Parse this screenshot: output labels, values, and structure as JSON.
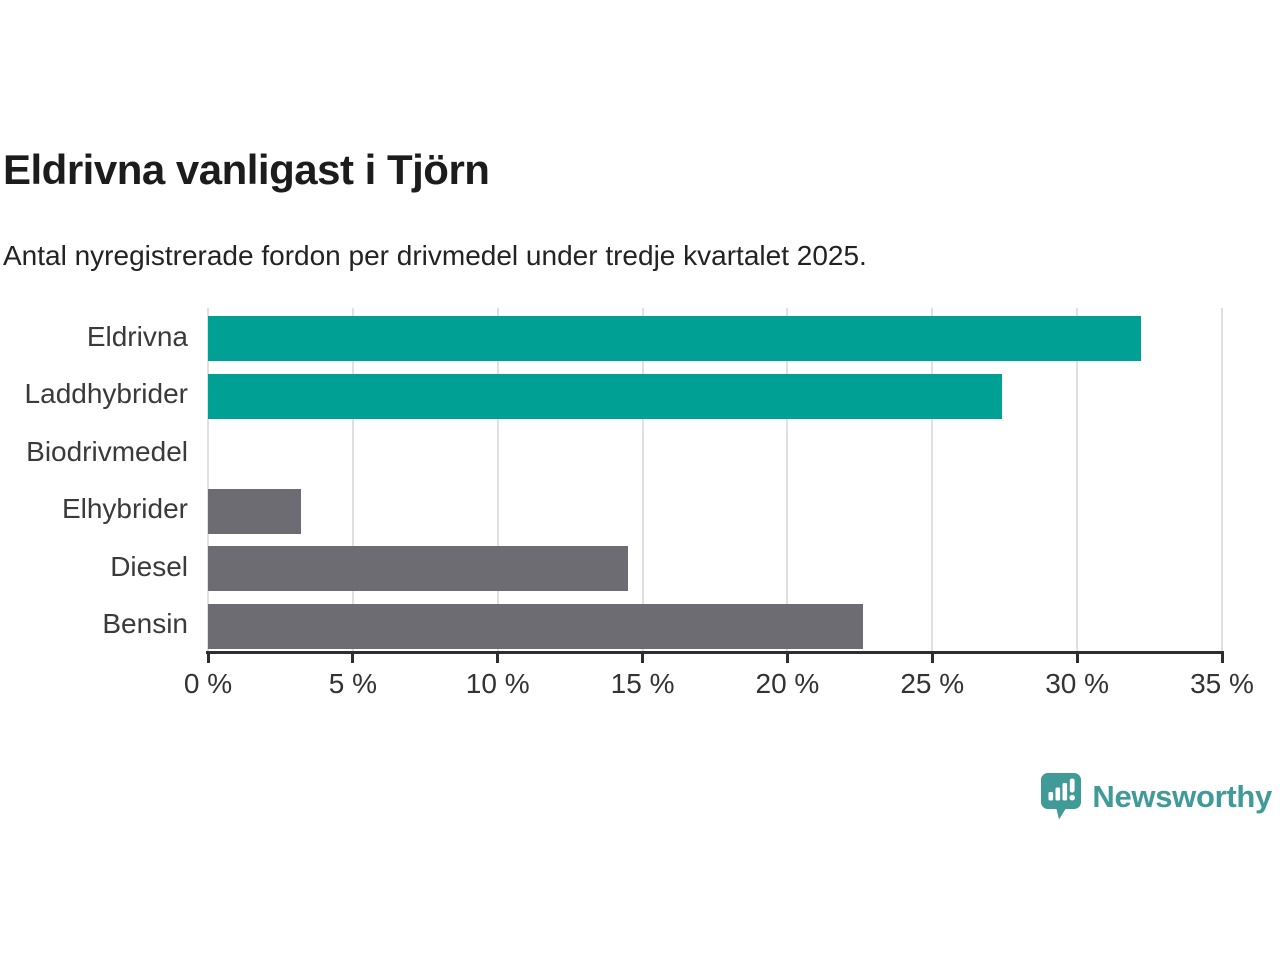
{
  "chart_data": {
    "type": "bar",
    "orientation": "horizontal",
    "title": "Eldrivna vanligast i Tjörn",
    "subtitle": "Antal nyregistrerade fordon per drivmedel under tredje kvartalet 2025.",
    "categories": [
      "Eldrivna",
      "Laddhybrider",
      "Biodrivmedel",
      "Elhybrider",
      "Diesel",
      "Bensin"
    ],
    "values": [
      32.2,
      27.4,
      0,
      3.2,
      14.5,
      22.6
    ],
    "unit": "%",
    "xlim": [
      0,
      35
    ],
    "x_ticks": [
      0,
      5,
      10,
      15,
      20,
      25,
      30,
      35
    ],
    "x_tick_labels": [
      "0 %",
      "5 %",
      "10 %",
      "15 %",
      "20 %",
      "25 %",
      "30 %",
      "35 %"
    ],
    "bar_colors": [
      "#00a095",
      "#00a095",
      "#6c6c72",
      "#6c6c72",
      "#6c6c72",
      "#6c6c72"
    ],
    "grid": true,
    "legend": "none",
    "background": "#ffffff"
  },
  "colors": {
    "highlight_teal": "#00a095",
    "neutral_gray": "#6c6c72",
    "gridline": "#e0e0e0",
    "axis": "#2e2e2e",
    "logo_teal": "#3f9a98"
  },
  "branding": {
    "logo_text": "Newsworthy",
    "logo_icon": "newsworthy-speech-bubble-bar-chart-icon"
  }
}
